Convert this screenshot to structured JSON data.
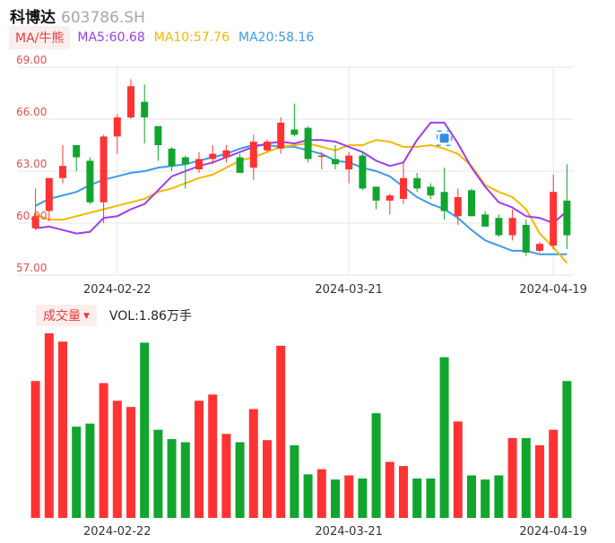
{
  "header": {
    "name": "科博达",
    "code": "603786.SH"
  },
  "ma_legend": {
    "mode": "MA/牛熊",
    "ma5": {
      "label": "MA5:60.68",
      "color": "#9b3ef0"
    },
    "ma10": {
      "label": "MA10:57.76",
      "color": "#f5b800"
    },
    "ma20": {
      "label": "MA20:58.16",
      "color": "#3e9be8"
    }
  },
  "vol_legend": {
    "mode": "成交量",
    "text": "VOL:1.86万手"
  },
  "colors": {
    "up": "#ff3333",
    "down": "#11a52d",
    "grid": "#e6e6e6",
    "tick": "#e65050"
  },
  "chart_data": [
    {
      "type": "candlestick",
      "ylim": [
        57,
        69
      ],
      "yticks": [
        "69.00",
        "66.00",
        "63.00",
        "60.00",
        "57.00"
      ],
      "xticks": [
        {
          "index": 6,
          "label": "2024-02-22"
        },
        {
          "index": 23,
          "label": "2024-03-21"
        },
        {
          "index": 38,
          "label": "2024-04-19"
        }
      ],
      "candles": [
        {
          "o": 59.7,
          "h": 62.0,
          "l": 59.6,
          "c": 60.4
        },
        {
          "o": 60.7,
          "h": 62.6,
          "l": 60.1,
          "c": 62.6
        },
        {
          "o": 62.6,
          "h": 64.5,
          "l": 62.3,
          "c": 63.3
        },
        {
          "o": 64.5,
          "h": 64.5,
          "l": 63.0,
          "c": 63.8
        },
        {
          "o": 63.6,
          "h": 63.8,
          "l": 61.1,
          "c": 61.2
        },
        {
          "o": 61.2,
          "h": 65.1,
          "l": 60.0,
          "c": 65.0
        },
        {
          "o": 65.0,
          "h": 66.3,
          "l": 64.0,
          "c": 66.1
        },
        {
          "o": 66.1,
          "h": 68.3,
          "l": 66.0,
          "c": 67.9
        },
        {
          "o": 67.0,
          "h": 68.0,
          "l": 64.6,
          "c": 66.1
        },
        {
          "o": 65.6,
          "h": 65.6,
          "l": 63.6,
          "c": 64.5
        },
        {
          "o": 64.3,
          "h": 64.4,
          "l": 63.0,
          "c": 63.3
        },
        {
          "o": 63.8,
          "h": 63.9,
          "l": 62.0,
          "c": 63.4
        },
        {
          "o": 63.1,
          "h": 64.1,
          "l": 62.9,
          "c": 63.7
        },
        {
          "o": 63.7,
          "h": 64.5,
          "l": 63.4,
          "c": 64.0
        },
        {
          "o": 63.8,
          "h": 64.5,
          "l": 63.5,
          "c": 64.2
        },
        {
          "o": 63.8,
          "h": 64.0,
          "l": 62.9,
          "c": 62.9
        },
        {
          "o": 63.2,
          "h": 65.1,
          "l": 62.5,
          "c": 64.7
        },
        {
          "o": 64.2,
          "h": 64.8,
          "l": 64.1,
          "c": 64.7
        },
        {
          "o": 64.3,
          "h": 66.1,
          "l": 64.0,
          "c": 65.8
        },
        {
          "o": 65.4,
          "h": 66.9,
          "l": 65.0,
          "c": 65.1
        },
        {
          "o": 65.5,
          "h": 65.6,
          "l": 63.5,
          "c": 63.7
        },
        {
          "o": 63.9,
          "h": 64.1,
          "l": 63.1,
          "c": 63.9
        },
        {
          "o": 63.7,
          "h": 64.5,
          "l": 63.1,
          "c": 63.4
        },
        {
          "o": 63.1,
          "h": 64.1,
          "l": 62.3,
          "c": 63.9
        },
        {
          "o": 63.9,
          "h": 64.1,
          "l": 61.9,
          "c": 62.0
        },
        {
          "o": 62.1,
          "h": 62.1,
          "l": 60.8,
          "c": 61.3
        },
        {
          "o": 61.3,
          "h": 61.7,
          "l": 60.5,
          "c": 61.6
        },
        {
          "o": 61.4,
          "h": 63.5,
          "l": 61.1,
          "c": 62.6
        },
        {
          "o": 62.6,
          "h": 62.9,
          "l": 61.8,
          "c": 62.0
        },
        {
          "o": 62.1,
          "h": 62.3,
          "l": 61.4,
          "c": 61.6
        },
        {
          "o": 61.8,
          "h": 63.2,
          "l": 60.2,
          "c": 60.7
        },
        {
          "o": 60.4,
          "h": 62.0,
          "l": 59.9,
          "c": 61.5
        },
        {
          "o": 61.9,
          "h": 62.0,
          "l": 60.4,
          "c": 60.4
        },
        {
          "o": 60.5,
          "h": 60.7,
          "l": 59.8,
          "c": 59.8
        },
        {
          "o": 60.3,
          "h": 60.5,
          "l": 59.2,
          "c": 59.3
        },
        {
          "o": 59.3,
          "h": 60.8,
          "l": 59.0,
          "c": 60.3
        },
        {
          "o": 59.9,
          "h": 60.2,
          "l": 58.1,
          "c": 58.3
        },
        {
          "o": 58.4,
          "h": 58.9,
          "l": 58.3,
          "c": 58.8
        },
        {
          "o": 58.7,
          "h": 62.8,
          "l": 58.5,
          "c": 61.8
        },
        {
          "o": 61.3,
          "h": 63.4,
          "l": 58.5,
          "c": 59.3
        }
      ],
      "ma5": [
        59.7,
        59.8,
        59.6,
        59.4,
        59.5,
        60.3,
        60.4,
        60.8,
        61.1,
        61.9,
        62.7,
        63.0,
        63.3,
        63.5,
        63.8,
        64.1,
        64.4,
        64.6,
        64.7,
        64.6,
        64.8,
        64.8,
        64.7,
        64.4,
        64.1,
        63.6,
        63.3,
        63.5,
        64.8,
        65.8,
        65.8,
        64.6,
        63.2,
        62.1,
        61.2,
        60.9,
        60.4,
        60.3,
        60.0,
        60.7
      ],
      "ma10": [
        60.5,
        60.2,
        60.2,
        60.4,
        60.6,
        60.8,
        61.0,
        61.2,
        61.4,
        61.8,
        62.0,
        62.3,
        62.6,
        62.8,
        63.2,
        63.6,
        63.8,
        64.1,
        64.4,
        64.5,
        64.6,
        64.4,
        64.2,
        64.5,
        64.5,
        64.8,
        64.7,
        64.4,
        64.4,
        64.5,
        64.3,
        64.0,
        63.3,
        62.2,
        61.8,
        61.5,
        60.8,
        59.4,
        58.6,
        57.7
      ],
      "ma20": [
        61.0,
        61.4,
        61.6,
        61.8,
        62.2,
        62.5,
        62.7,
        62.9,
        63.0,
        63.2,
        63.3,
        63.4,
        63.6,
        63.8,
        64.0,
        64.3,
        64.5,
        64.5,
        64.4,
        64.4,
        64.2,
        64.0,
        63.6,
        63.5,
        63.2,
        63.0,
        62.7,
        62.1,
        61.5,
        61.1,
        60.8,
        60.3,
        59.6,
        59.0,
        58.7,
        58.4,
        58.4,
        58.2,
        58.2,
        58.2
      ]
    },
    {
      "type": "bar",
      "title": "成交量",
      "values": [
        132,
        178,
        170,
        88,
        91,
        130,
        113,
        107,
        169,
        85,
        76,
        73,
        113,
        119,
        81,
        73,
        105,
        75,
        166,
        70,
        42,
        47,
        37,
        41,
        38,
        101,
        54,
        50,
        38,
        38,
        155,
        93,
        41,
        37,
        41,
        77,
        77,
        70,
        85,
        132
      ]
    }
  ]
}
